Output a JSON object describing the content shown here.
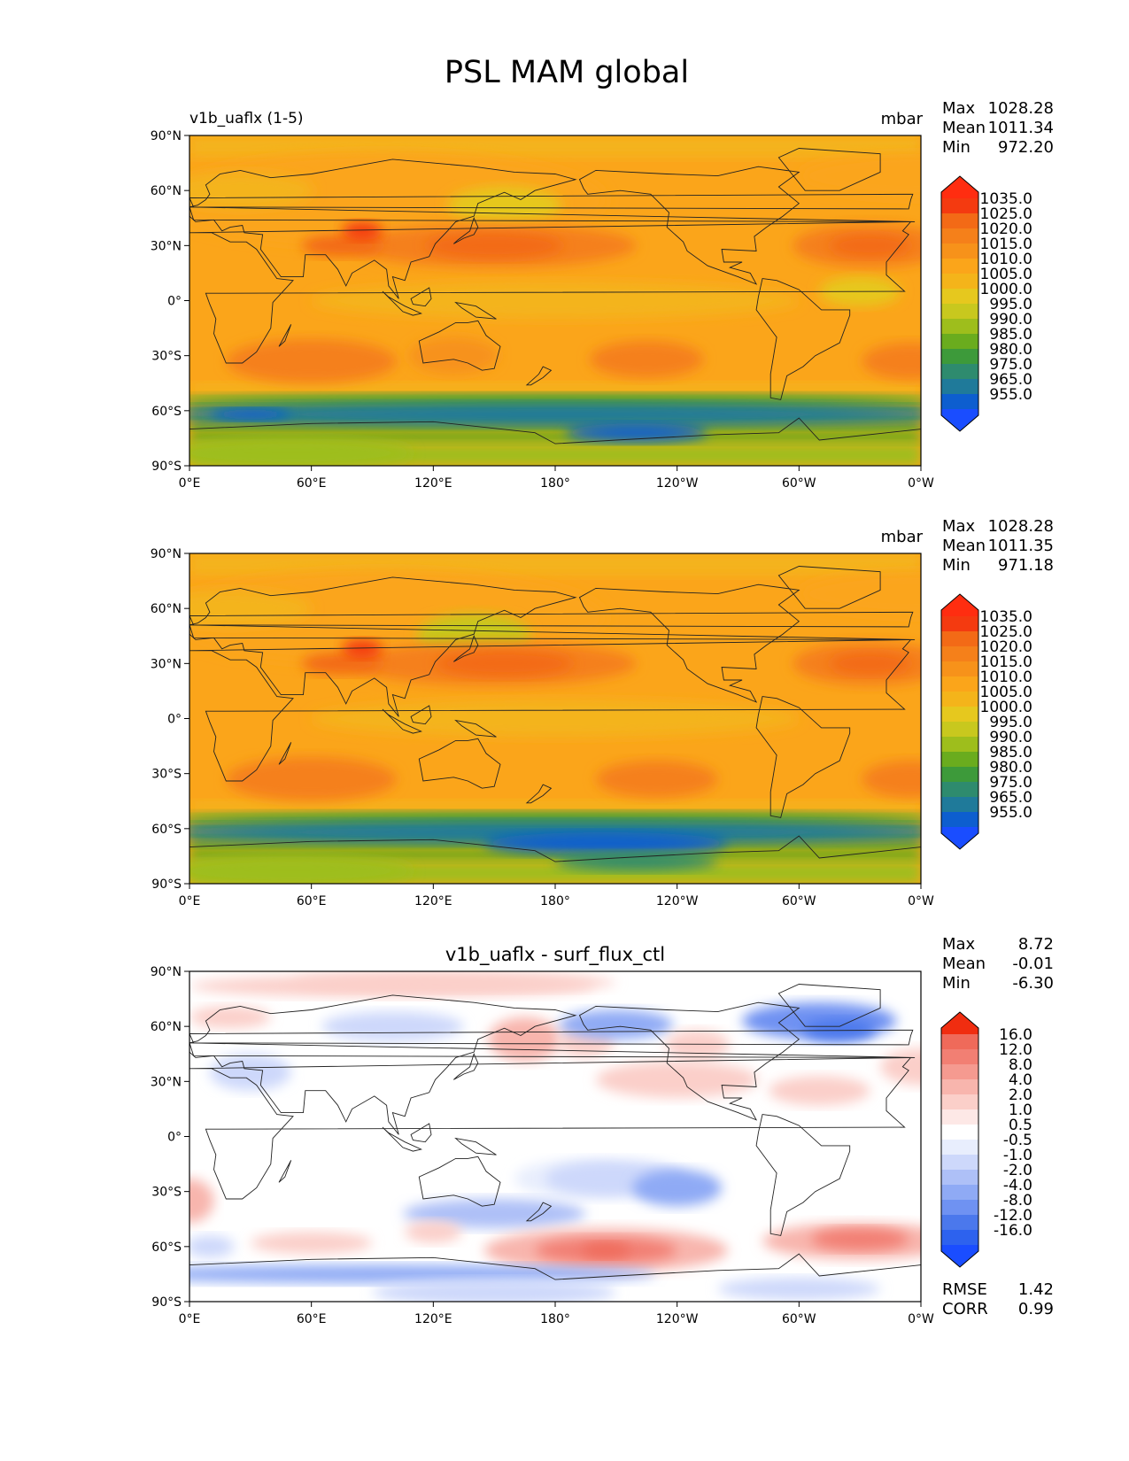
{
  "figure": {
    "title": "PSL MAM global"
  },
  "axes": {
    "lat_ticks": [
      "90°N",
      "60°N",
      "30°N",
      "0°",
      "30°S",
      "60°S",
      "90°S"
    ],
    "lon_ticks": [
      "0°E",
      "60°E",
      "120°E",
      "180°",
      "120°W",
      "60°W",
      "0°W"
    ]
  },
  "colors": {
    "psl": [
      "#1a4dff",
      "#0d5ecf",
      "#1f7a9a",
      "#2e8b6e",
      "#3d9a3a",
      "#6aac1e",
      "#9ebe1c",
      "#c8c81e",
      "#e6c81e",
      "#f4b41a",
      "#fba51a",
      "#f7921a",
      "#f5801a",
      "#f36a16",
      "#f43a10",
      "#ff2d10"
    ],
    "diff": [
      "#1a4dff",
      "#2d62ee",
      "#4b78ec",
      "#6f92f2",
      "#8faaf5",
      "#aec0f7",
      "#cdd8fb",
      "#e8eefd",
      "#ffffff",
      "#fde8e6",
      "#fbcfc9",
      "#f8b5ad",
      "#f59a90",
      "#f27f73",
      "#ef6a5a",
      "#f02d10"
    ]
  },
  "chart_data": [
    {
      "type": "heatmap",
      "name": "test",
      "title_left": "v1b_uaflx (1-5)",
      "title_center": "",
      "units": "mbar",
      "stats": {
        "max_label": "Max",
        "max": "1028.28",
        "mean_label": "Mean",
        "mean": "1011.34",
        "min_label": "Min",
        "min": "972.20"
      },
      "colorbar_labels": [
        "1035.0",
        "1025.0",
        "1020.0",
        "1015.0",
        "1010.0",
        "1005.0",
        "1000.0",
        "995.0",
        "990.0",
        "985.0",
        "980.0",
        "975.0",
        "965.0",
        "955.0"
      ],
      "xlim": [
        0,
        360
      ],
      "ylim": [
        -90,
        90
      ]
    },
    {
      "type": "heatmap",
      "name": "reference",
      "title_left": "",
      "title_center": "",
      "units": "mbar",
      "stats": {
        "max_label": "Max",
        "max": "1028.28",
        "mean_label": "Mean",
        "mean": "1011.35",
        "min_label": "Min",
        "min": "971.18"
      },
      "colorbar_labels": [
        "1035.0",
        "1025.0",
        "1020.0",
        "1015.0",
        "1010.0",
        "1005.0",
        "1000.0",
        "995.0",
        "990.0",
        "985.0",
        "980.0",
        "975.0",
        "965.0",
        "955.0"
      ],
      "xlim": [
        0,
        360
      ],
      "ylim": [
        -90,
        90
      ]
    },
    {
      "type": "heatmap",
      "name": "difference",
      "title_left": "",
      "title_center": "v1b_uaflx - surf_flux_ctl",
      "units": "",
      "stats": {
        "max_label": "Max",
        "max": "8.72",
        "mean_label": "Mean",
        "mean": "-0.01",
        "min_label": "Min",
        "min": "-6.30"
      },
      "colorbar_labels": [
        "16.0",
        "12.0",
        "8.0",
        "4.0",
        "2.0",
        "1.0",
        "0.5",
        "-0.5",
        "-1.0",
        "-2.0",
        "-4.0",
        "-8.0",
        "-12.0",
        "-16.0"
      ],
      "metrics": {
        "rmse_label": "RMSE",
        "rmse": "1.42",
        "corr_label": "CORR",
        "corr": "0.99"
      },
      "xlim": [
        0,
        360
      ],
      "ylim": [
        -90,
        90
      ]
    }
  ]
}
